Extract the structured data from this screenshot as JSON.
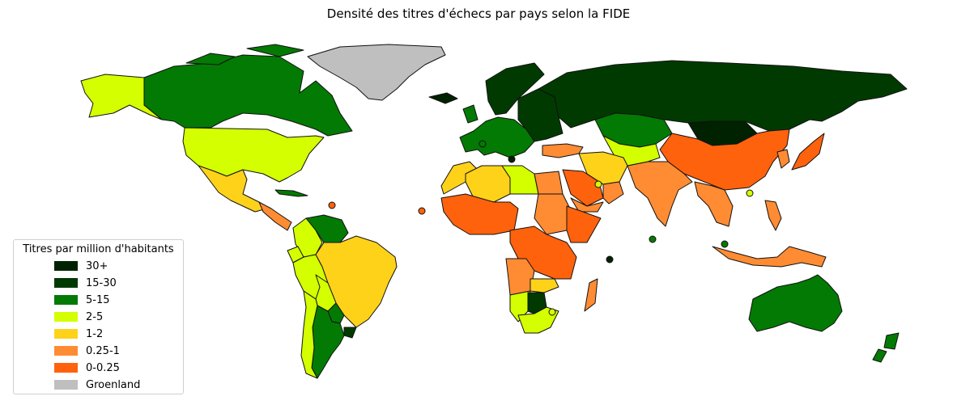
{
  "title": "Densité des titres d'échecs par pays selon la FIDE",
  "legend": {
    "title": "Titres par million d'habitants",
    "items": [
      {
        "label": "30+",
        "color": "#002200"
      },
      {
        "label": "15-30",
        "color": "#003a00"
      },
      {
        "label": "5-15",
        "color": "#037a03"
      },
      {
        "label": "2-5",
        "color": "#d4ff00"
      },
      {
        "label": "1-2",
        "color": "#ffd21a"
      },
      {
        "label": "0.25-1",
        "color": "#ff8c33"
      },
      {
        "label": "0-0.25",
        "color": "#ff620d"
      },
      {
        "label": "Groenland",
        "color": "#bfbfbf"
      }
    ]
  },
  "regions": [
    {
      "name": "Groenland",
      "category": "Groenland"
    },
    {
      "name": "Alaska",
      "category": "2-5"
    },
    {
      "name": "Canada",
      "category": "5-15"
    },
    {
      "name": "États-Unis",
      "category": "2-5"
    },
    {
      "name": "Mexique",
      "category": "1-2"
    },
    {
      "name": "Amérique centrale",
      "category": "0.25-1"
    },
    {
      "name": "Cuba",
      "category": "5-15"
    },
    {
      "name": "Venezuela",
      "category": "5-15"
    },
    {
      "name": "Colombie",
      "category": "2-5"
    },
    {
      "name": "Équateur",
      "category": "2-5"
    },
    {
      "name": "Pérou",
      "category": "2-5"
    },
    {
      "name": "Brésil",
      "category": "1-2"
    },
    {
      "name": "Bolivie",
      "category": "2-5"
    },
    {
      "name": "Paraguay",
      "category": "5-15"
    },
    {
      "name": "Uruguay",
      "category": "15-30"
    },
    {
      "name": "Argentine",
      "category": "5-15"
    },
    {
      "name": "Chili",
      "category": "2-5"
    },
    {
      "name": "Islande",
      "category": "30+"
    },
    {
      "name": "Norvège",
      "category": "15-30"
    },
    {
      "name": "Europe occidentale",
      "category": "5-15"
    },
    {
      "name": "Europe de l'Est",
      "category": "15-30"
    },
    {
      "name": "Russie",
      "category": "15-30"
    },
    {
      "name": "Kazakhstan",
      "category": "5-15"
    },
    {
      "name": "Mongolie",
      "category": "30+"
    },
    {
      "name": "Chine",
      "category": "0-0.25"
    },
    {
      "name": "Japon",
      "category": "0-0.25"
    },
    {
      "name": "Corée",
      "category": "0.25-1"
    },
    {
      "name": "Inde",
      "category": "0.25-1"
    },
    {
      "name": "Asie centrale",
      "category": "2-5"
    },
    {
      "name": "Iran",
      "category": "1-2"
    },
    {
      "name": "Turquie",
      "category": "0.25-1"
    },
    {
      "name": "Arabie saoudite",
      "category": "0-0.25"
    },
    {
      "name": "Oman",
      "category": "0.25-1"
    },
    {
      "name": "Yémen",
      "category": "0.25-1"
    },
    {
      "name": "Asie du Sud-Est",
      "category": "0.25-1"
    },
    {
      "name": "Indonésie",
      "category": "0.25-1"
    },
    {
      "name": "Philippines",
      "category": "0.25-1"
    },
    {
      "name": "Australie",
      "category": "5-15"
    },
    {
      "name": "Nouvelle-Zélande",
      "category": "5-15"
    },
    {
      "name": "Maroc",
      "category": "1-2"
    },
    {
      "name": "Algérie",
      "category": "1-2"
    },
    {
      "name": "Libye",
      "category": "2-5"
    },
    {
      "name": "Égypte",
      "category": "0.25-1"
    },
    {
      "name": "Afrique de l'Ouest",
      "category": "0-0.25"
    },
    {
      "name": "Soudan",
      "category": "0.25-1"
    },
    {
      "name": "Éthiopie",
      "category": "0-0.25"
    },
    {
      "name": "Afrique centrale",
      "category": "0-0.25"
    },
    {
      "name": "Angola",
      "category": "0.25-1"
    },
    {
      "name": "Zambie",
      "category": "1-2"
    },
    {
      "name": "Namibie",
      "category": "2-5"
    },
    {
      "name": "Botswana",
      "category": "15-30"
    },
    {
      "name": "Afrique du Sud",
      "category": "2-5"
    },
    {
      "name": "Madagascar",
      "category": "0.25-1"
    }
  ],
  "markers": [
    {
      "name": "Barbade",
      "category": "0-0.25"
    },
    {
      "name": "Cap-Vert",
      "category": "0-0.25"
    },
    {
      "name": "Malte",
      "category": "30+"
    },
    {
      "name": "Monaco",
      "category": "5-15"
    },
    {
      "name": "Maldives",
      "category": "5-15"
    },
    {
      "name": "Seychelles",
      "category": "30+"
    },
    {
      "name": "Singapour",
      "category": "5-15"
    },
    {
      "name": "Bahreïn",
      "category": "2-5"
    },
    {
      "name": "Brunei",
      "category": "2-5"
    },
    {
      "name": "Maurice",
      "category": "2-5"
    }
  ]
}
